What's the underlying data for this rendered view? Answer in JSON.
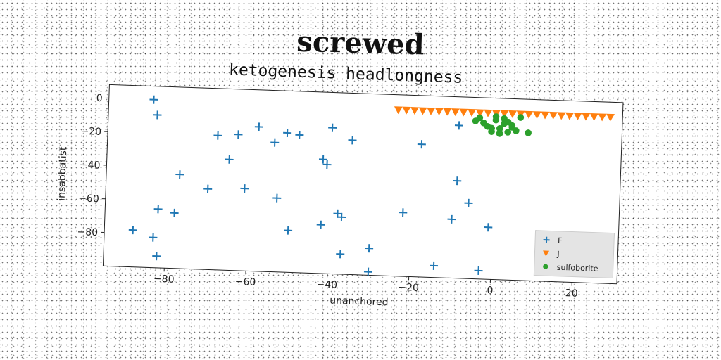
{
  "title": "screwed",
  "chart_data": {
    "type": "scatter",
    "title": "ketogenesis headlongness",
    "xlabel": "unanchored",
    "ylabel": "insabbatist",
    "xlim": [
      -95,
      31
    ],
    "ylim": [
      -100,
      8
    ],
    "xticks": [
      -80,
      -60,
      -40,
      -20,
      0,
      20
    ],
    "yticks": [
      0,
      -20,
      -40,
      -60,
      -80
    ],
    "grid": false,
    "legend_position": "lower-right",
    "series": [
      {
        "name": "F",
        "marker": "plus",
        "color": "#1f77b4",
        "x": [
          -84,
          -83,
          -68,
          -63,
          -65,
          -58,
          -54,
          -51,
          -48,
          -40,
          -35,
          -42,
          -41,
          -77,
          -70,
          -61,
          -53,
          -82,
          -78,
          -88,
          -83,
          -82,
          -50,
          -42,
          -38,
          -37,
          -37,
          -30,
          -22,
          -30,
          -14,
          -18,
          -9,
          -9,
          -10,
          -6,
          -1,
          -3
        ],
        "y": [
          0,
          -9,
          -20,
          -19,
          -34,
          -14,
          -23,
          -17,
          -18,
          -13,
          -20,
          -32,
          -35,
          -44,
          -52,
          -51,
          -56,
          -65,
          -67,
          -78,
          -82,
          -93,
          -75,
          -71,
          -64,
          -66,
          -88,
          -84,
          -62,
          -98,
          -93,
          -21,
          -9,
          -42,
          -65,
          -55,
          -69,
          -95
        ]
      },
      {
        "name": "J",
        "marker": "triangle-down",
        "color": "#ff7f0e",
        "x": [
          -24,
          -22,
          -20,
          -18,
          -16,
          -14,
          -12,
          -10,
          -8,
          -6,
          -4,
          -2,
          0,
          2,
          4,
          6,
          8,
          10,
          12,
          14,
          16,
          18,
          20,
          22,
          24,
          26,
          28
        ],
        "y": [
          -1,
          -1,
          -1,
          -1,
          -1,
          -1,
          -1,
          -1,
          -1,
          -1,
          -1,
          -1,
          -1,
          -1,
          -1,
          -1,
          -1,
          -1,
          -1,
          -1,
          -1,
          -1,
          -1,
          -1,
          -1,
          -1,
          -1
        ]
      },
      {
        "name": "sulfoborite",
        "marker": "circle",
        "color": "#2ca02c",
        "x": [
          -5,
          -4,
          -2,
          -1,
          0,
          1,
          2,
          3,
          4,
          5,
          6,
          8,
          -3,
          0,
          2,
          4,
          1,
          3,
          -1
        ],
        "y": [
          -6,
          -4,
          -9,
          -12,
          -5,
          -10,
          -7,
          -12,
          -9,
          -11,
          -3,
          -12,
          -7,
          -3,
          -4,
          -8,
          -13,
          -6,
          -10
        ]
      }
    ]
  }
}
